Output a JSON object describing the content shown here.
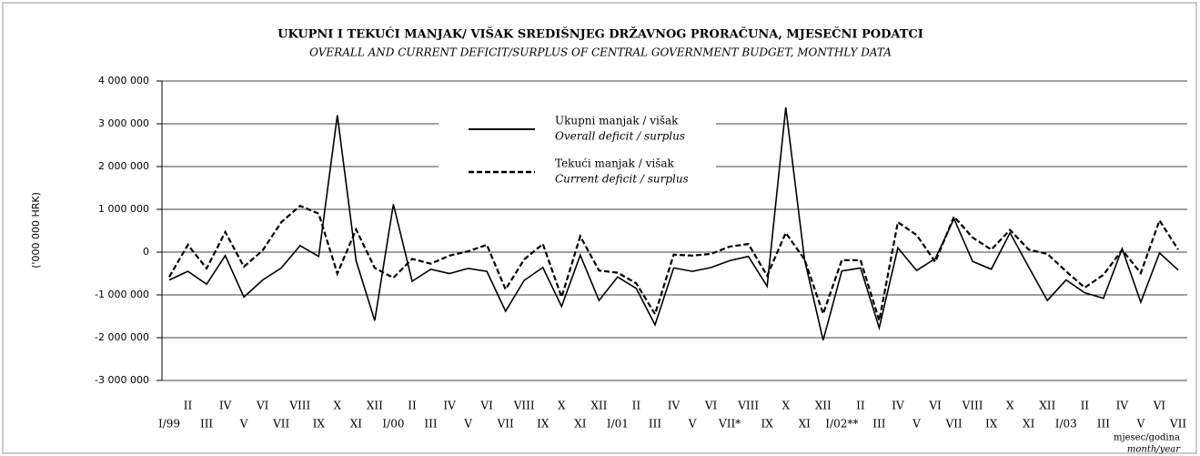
{
  "chart_data": {
    "type": "line",
    "title": "UKUPNI I TEKUĆI MANJAK/ VIŠAK SREDIŠNJEG DRŽAVNOG PRORAČUNA, MJESEČNI PODATCI",
    "subtitle": "OVERALL AND CURRENT DEFICIT/SURPLUS OF CENTRAL GOVERNMENT BUDGET, MONTHLY DATA",
    "y_label": "('000 000 HRK)",
    "x_label": "mjesec/godina",
    "x_label_en": "month/year",
    "categories": [
      "I/99",
      "II",
      "III",
      "IV",
      "V",
      "VI",
      "VII",
      "VIII",
      "IX",
      "X",
      "XI",
      "XII",
      "I/00",
      "II",
      "III",
      "IV",
      "V",
      "VI",
      "VII",
      "VIII",
      "IX",
      "X",
      "XI",
      "XII",
      "I/01",
      "II",
      "III",
      "IV",
      "V",
      "VI",
      "VII*",
      "VIII",
      "IX",
      "X",
      "XI",
      "XII",
      "I/02**",
      "II",
      "III",
      "IV",
      "V",
      "VI",
      "VII",
      "VIII",
      "IX",
      "X",
      "XI",
      "XII",
      "I/03",
      "II",
      "III",
      "IV",
      "V",
      "VI",
      "VII"
    ],
    "series": [
      {
        "name": "Ukupni manjak / višak",
        "name_en": "Overall deficit / surplus",
        "color": "#000000",
        "dash": false,
        "values": [
          -650000,
          -450000,
          -750000,
          -80000,
          -1050000,
          -650000,
          -370000,
          150000,
          -100000,
          3200000,
          -200000,
          -1600000,
          1120000,
          -680000,
          -400000,
          -500000,
          -380000,
          -450000,
          -1380000,
          -660000,
          -360000,
          -1270000,
          -70000,
          -1130000,
          -580000,
          -850000,
          -1700000,
          -370000,
          -450000,
          -360000,
          -200000,
          -100000,
          -800000,
          3380000,
          -170000,
          -2060000,
          -440000,
          -370000,
          -1770000,
          100000,
          -430000,
          -150000,
          780000,
          -220000,
          -400000,
          450000,
          -350000,
          -1130000,
          -650000,
          -950000,
          -1080000,
          80000,
          -1170000,
          -20000,
          -420000
        ]
      },
      {
        "name": "Tekući manjak / višak",
        "name_en": "Current deficit / surplus",
        "color": "#000000",
        "dash": true,
        "values": [
          -580000,
          170000,
          -380000,
          470000,
          -340000,
          40000,
          700000,
          1080000,
          900000,
          -500000,
          530000,
          -370000,
          -600000,
          -160000,
          -270000,
          -80000,
          20000,
          170000,
          -870000,
          -170000,
          190000,
          -1050000,
          370000,
          -430000,
          -480000,
          -730000,
          -1450000,
          -60000,
          -80000,
          -40000,
          130000,
          190000,
          -550000,
          450000,
          -170000,
          -1440000,
          -190000,
          -190000,
          -1600000,
          700000,
          400000,
          -230000,
          830000,
          340000,
          60000,
          520000,
          60000,
          -40000,
          -450000,
          -830000,
          -530000,
          50000,
          -490000,
          740000,
          60000
        ]
      }
    ],
    "ylim": [
      -3000000,
      4000000
    ],
    "yticks": [
      {
        "value": -3000000,
        "label": "-3 000 000"
      },
      {
        "value": -2000000,
        "label": "-2 000 000"
      },
      {
        "value": -1000000,
        "label": "-1 000 000"
      },
      0,
      {
        "value": 1000000,
        "label": "1 000 000"
      },
      {
        "value": 2000000,
        "label": "2 000 000"
      },
      {
        "value": 3000000,
        "label": "3 000 000"
      },
      {
        "value": 4000000,
        "label": "4 000 000"
      }
    ],
    "grid": true
  }
}
